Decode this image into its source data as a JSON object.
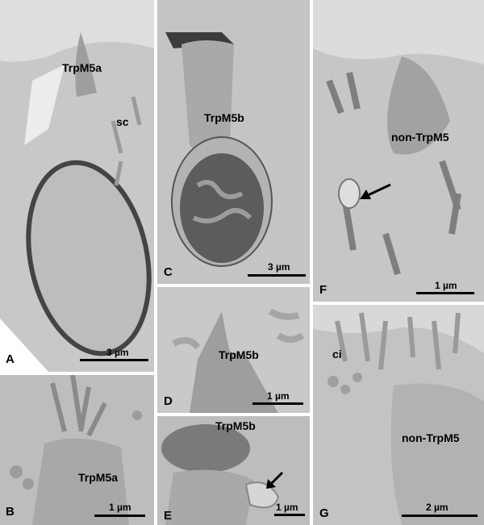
{
  "figure": {
    "panels": {
      "A": {
        "letter": "A",
        "labels": [
          "TrpM5a",
          "sc"
        ],
        "scale": "3 µm"
      },
      "B": {
        "letter": "B",
        "labels": [
          "TrpM5a"
        ],
        "scale": "1 µm"
      },
      "C": {
        "letter": "C",
        "labels": [
          "TrpM5b"
        ],
        "scale": "3 µm"
      },
      "D": {
        "letter": "D",
        "labels": [
          "TrpM5b"
        ],
        "scale": "1 µm"
      },
      "E": {
        "letter": "E",
        "labels": [
          "TrpM5b"
        ],
        "scale": "1 µm"
      },
      "F": {
        "letter": "F",
        "labels": [
          "non-TrpM5"
        ],
        "scale": "1 µm"
      },
      "G": {
        "letter": "G",
        "labels": [
          "ci",
          "non-TrpM5"
        ],
        "scale": "2 µm"
      }
    }
  }
}
